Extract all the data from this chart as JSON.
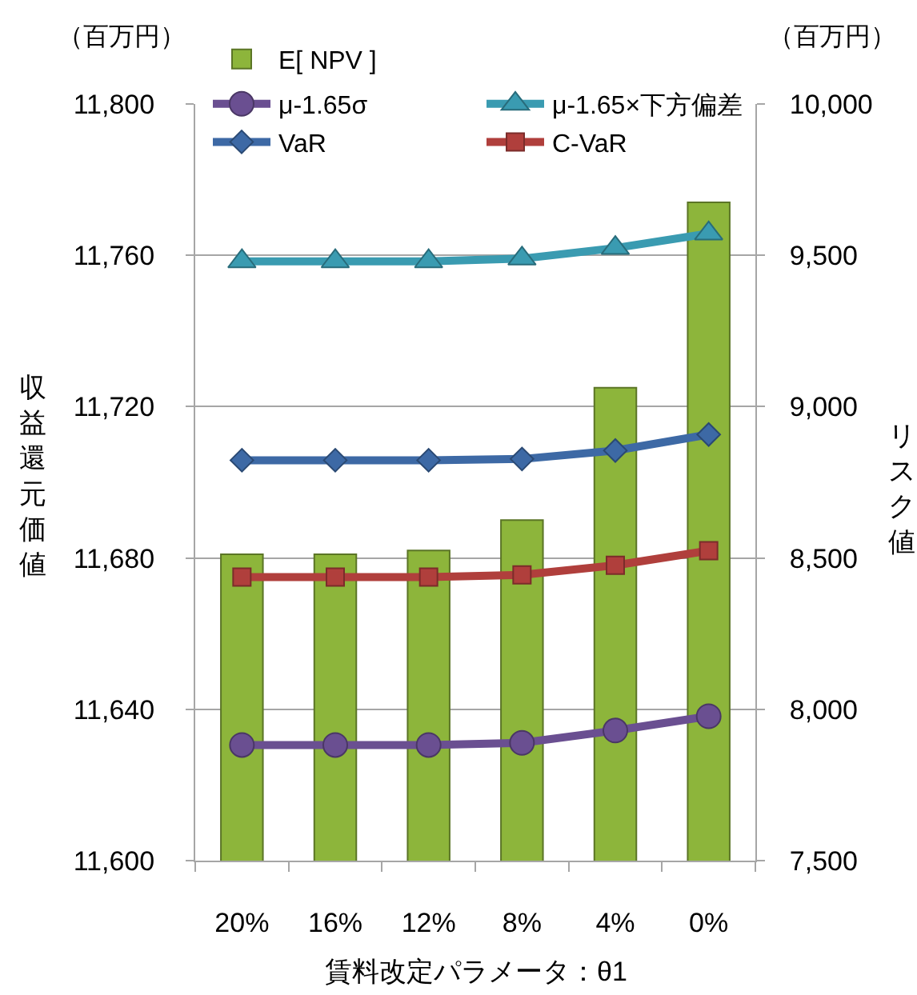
{
  "chart_data": {
    "type": "bar",
    "categories": [
      "20%",
      "16%",
      "12%",
      "8%",
      "4%",
      "0%"
    ],
    "xlabel": "賃料改定パラメータ：θ1",
    "ylabel": "収益還元価値",
    "y2label": "リスク値",
    "annotations": [
      "（百万円）",
      "（百万円）"
    ],
    "series": [
      {
        "name": "E[ NPV ]",
        "color": "#8db53b",
        "values": [
          11681,
          11681,
          11682,
          11690,
          11725,
          11774
        ]
      },
      {
        "name": "μ-1.65σ",
        "type": "line",
        "axis": "y2",
        "color": "#6a4f91",
        "marker": "circle",
        "values": [
          7882,
          7882,
          7882,
          7889,
          7930,
          7977
        ]
      },
      {
        "name": "μ-1.65×下方偏差",
        "type": "line",
        "axis": "y2",
        "color": "#3a9bb1",
        "marker": "triangle",
        "values": [
          9480,
          9480,
          9480,
          9489,
          9524,
          9572
        ]
      },
      {
        "name": "VaR",
        "type": "line",
        "axis": "y2",
        "color": "#3d69a5",
        "marker": "diamond",
        "values": [
          8823,
          8823,
          8823,
          8827,
          8855,
          8908
        ]
      },
      {
        "name": "C-VaR",
        "type": "line",
        "axis": "y2",
        "color": "#b03f3c",
        "marker": "square",
        "values": [
          8437,
          8437,
          8437,
          8444,
          8476,
          8524
        ]
      }
    ],
    "ylim": [
      11600,
      11800
    ],
    "yticks": [
      {
        "value": 11600,
        "label": "11,600"
      },
      {
        "value": 11640,
        "label": "11,640"
      },
      {
        "value": 11680,
        "label": "11,680"
      },
      {
        "value": 11720,
        "label": "11,720"
      },
      {
        "value": 11760,
        "label": "11,760"
      },
      {
        "value": 11800,
        "label": "11,800"
      }
    ],
    "y2lim": [
      7500,
      10000
    ],
    "y2ticks": [
      {
        "value": 7500,
        "label": "7,500"
      },
      {
        "value": 8000,
        "label": "8,000"
      },
      {
        "value": 8500,
        "label": "8,500"
      },
      {
        "value": 9000,
        "label": "9,000"
      },
      {
        "value": 9500,
        "label": "9,500"
      },
      {
        "value": 10000,
        "label": "10,000"
      }
    ],
    "grid": "y",
    "legend": "top"
  }
}
